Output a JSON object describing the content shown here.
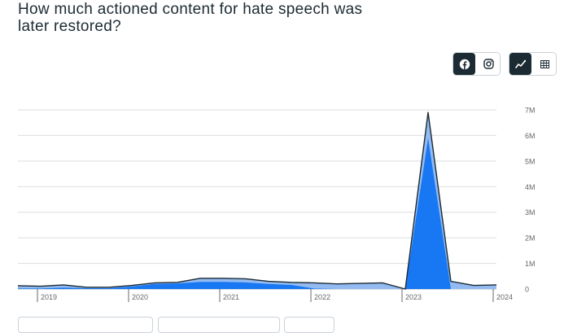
{
  "title": "How much actioned content for hate speech was later restored?",
  "platform_toggle": {
    "items": [
      {
        "icon": "facebook-icon",
        "active": true
      },
      {
        "icon": "instagram-icon",
        "active": false
      }
    ]
  },
  "view_toggle": {
    "items": [
      {
        "icon": "line-chart-icon",
        "active": true
      },
      {
        "icon": "table-icon",
        "active": false
      }
    ]
  },
  "colors": {
    "dark": "#1c2b33",
    "restored_with_appeal": "#1877f2",
    "restored_without_appeal": "#93bbf2",
    "grid": "#dadde1",
    "axis_text": "#65676b"
  },
  "chart_data": {
    "type": "area",
    "x": [
      "2018 Q4",
      "2019 Q1",
      "2019 Q2",
      "2019 Q3",
      "2019 Q4",
      "2020 Q1",
      "2020 Q2",
      "2020 Q3",
      "2020 Q4",
      "2021 Q1",
      "2021 Q2",
      "2021 Q3",
      "2021 Q4",
      "2022 Q1",
      "2022 Q2",
      "2022 Q3",
      "2022 Q4",
      "2023 Q1",
      "2023 Q2",
      "2023 Q3",
      "2023 Q4",
      "2024 Q1"
    ],
    "series": [
      {
        "values": [
          0.02,
          0.02,
          0.05,
          0.03,
          0.03,
          0.1,
          0.2,
          0.22,
          0.28,
          0.28,
          0.26,
          0.2,
          0.16,
          0.02,
          0.0,
          0.0,
          0.0,
          0.0,
          5.9,
          0.0,
          0.0,
          0.0
        ]
      },
      {
        "values": [
          0.13,
          0.11,
          0.16,
          0.07,
          0.07,
          0.14,
          0.24,
          0.26,
          0.42,
          0.42,
          0.4,
          0.3,
          0.26,
          0.24,
          0.2,
          0.22,
          0.24,
          0.0,
          6.9,
          0.3,
          0.14,
          0.16
        ]
      }
    ],
    "x_tick_labels": [
      "2019",
      "2020",
      "2021",
      "2022",
      "2023",
      "2024"
    ],
    "y_tick_labels": [
      "0",
      "1M",
      "2M",
      "3M",
      "4M",
      "5M",
      "6M",
      "7M"
    ],
    "ylim": [
      0,
      7000000
    ],
    "grid": true,
    "y_axis_position": "right"
  }
}
